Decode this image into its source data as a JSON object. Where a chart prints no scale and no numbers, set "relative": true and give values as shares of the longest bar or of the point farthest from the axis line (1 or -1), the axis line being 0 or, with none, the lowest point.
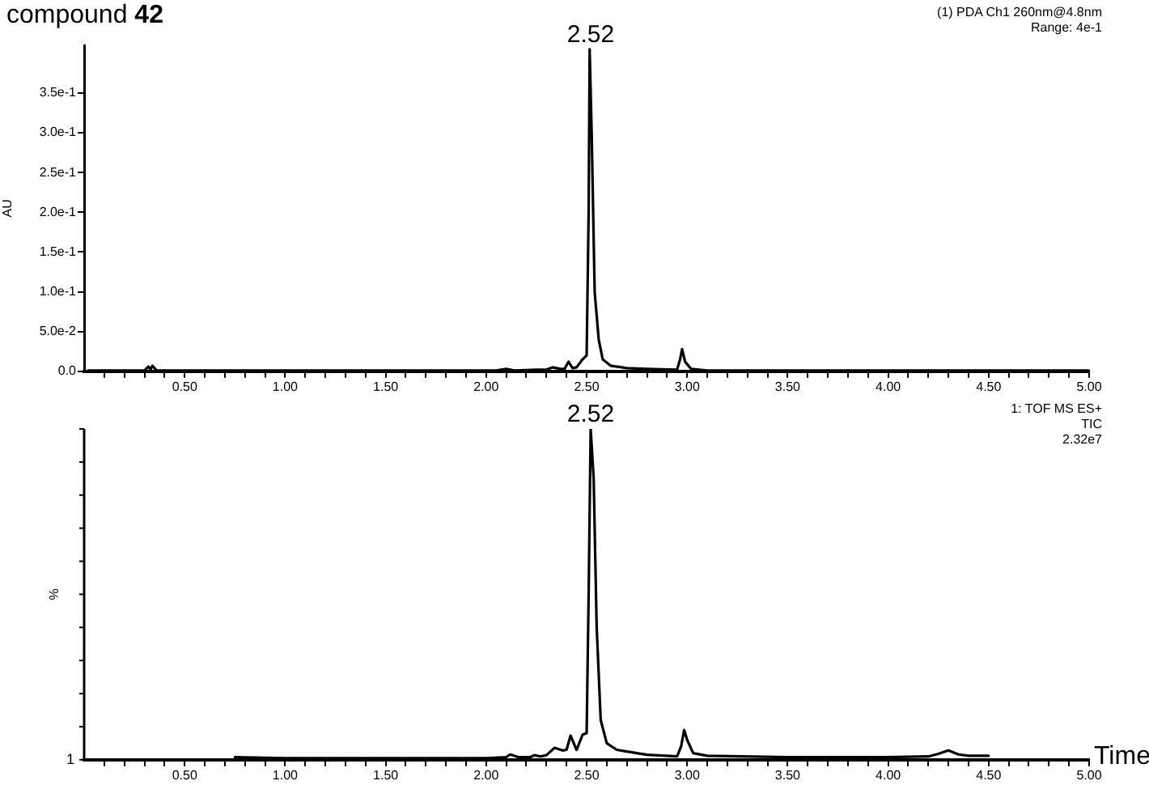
{
  "chart_data": [
    {
      "type": "line",
      "title": "compound 42",
      "ylabel": "AU",
      "xlim": [
        0,
        5
      ],
      "xticks": [
        {
          "value": 0.1,
          "label": null
        },
        {
          "value": 0.2,
          "label": null
        },
        {
          "value": 0.3,
          "label": null
        },
        {
          "value": 0.4,
          "label": null
        },
        {
          "value": 0.5,
          "label": "0.50"
        },
        {
          "value": 0.6,
          "label": null
        },
        {
          "value": 0.7,
          "label": null
        },
        {
          "value": 0.8,
          "label": null
        },
        {
          "value": 0.9,
          "label": null
        },
        {
          "value": 1,
          "label": "1.00"
        },
        {
          "value": 1.1,
          "label": null
        },
        {
          "value": 1.2,
          "label": null
        },
        {
          "value": 1.3,
          "label": null
        },
        {
          "value": 1.4,
          "label": null
        },
        {
          "value": 1.5,
          "label": "1.50"
        },
        {
          "value": 1.6,
          "label": null
        },
        {
          "value": 1.7,
          "label": null
        },
        {
          "value": 1.8,
          "label": null
        },
        {
          "value": 1.9,
          "label": null
        },
        {
          "value": 2,
          "label": "2.00"
        },
        {
          "value": 2.1,
          "label": null
        },
        {
          "value": 2.2,
          "label": null
        },
        {
          "value": 2.3,
          "label": null
        },
        {
          "value": 2.4,
          "label": null
        },
        {
          "value": 2.5,
          "label": "2.50"
        },
        {
          "value": 2.6,
          "label": null
        },
        {
          "value": 2.7,
          "label": null
        },
        {
          "value": 2.8,
          "label": null
        },
        {
          "value": 2.9,
          "label": null
        },
        {
          "value": 3,
          "label": "3.00"
        },
        {
          "value": 3.1,
          "label": null
        },
        {
          "value": 3.2,
          "label": null
        },
        {
          "value": 3.3,
          "label": null
        },
        {
          "value": 3.4,
          "label": null
        },
        {
          "value": 3.5,
          "label": "3.50"
        },
        {
          "value": 3.6,
          "label": null
        },
        {
          "value": 3.7,
          "label": null
        },
        {
          "value": 3.8,
          "label": null
        },
        {
          "value": 3.9,
          "label": null
        },
        {
          "value": 4,
          "label": "4.00"
        },
        {
          "value": 4.1,
          "label": null
        },
        {
          "value": 4.2,
          "label": null
        },
        {
          "value": 4.3,
          "label": null
        },
        {
          "value": 4.4,
          "label": null
        },
        {
          "value": 4.5,
          "label": "4.50"
        },
        {
          "value": 4.6,
          "label": null
        },
        {
          "value": 4.7,
          "label": null
        },
        {
          "value": 4.8,
          "label": null
        },
        {
          "value": 4.9,
          "label": null
        },
        {
          "value": 5,
          "label": "5.00"
        }
      ],
      "ylim": [
        0,
        0.41
      ],
      "yticks": [
        {
          "value": 0,
          "label": "0.0"
        },
        {
          "value": 0.05,
          "label": "5.0e-2"
        },
        {
          "value": 0.1,
          "label": "1.0e-1"
        },
        {
          "value": 0.15,
          "label": "1.5e-1"
        },
        {
          "value": 0.2,
          "label": "2.0e-1"
        },
        {
          "value": 0.25,
          "label": "2.5e-1"
        },
        {
          "value": 0.3,
          "label": "3.0e-1"
        },
        {
          "value": 0.35,
          "label": "3.5e-1"
        }
      ],
      "grid": false,
      "legend": false,
      "marker": "none",
      "line_style": "solid",
      "series": [
        {
          "color": "#000000",
          "x": [
            0.02,
            0.3,
            0.32,
            0.33,
            0.34,
            0.36,
            1.0,
            2.05,
            2.1,
            2.14,
            2.25,
            2.3,
            2.33,
            2.37,
            2.39,
            2.41,
            2.43,
            2.45,
            2.48,
            2.5,
            2.51,
            2.515,
            2.525,
            2.54,
            2.56,
            2.58,
            2.62,
            2.7,
            2.8,
            2.95,
            2.965,
            2.975,
            2.99,
            3.02,
            3.1,
            3.5,
            5.0
          ],
          "values": [
            0.001,
            0.001,
            0.006,
            0.002,
            0.007,
            0.001,
            0.001,
            0.001,
            0.003,
            0.001,
            0.002,
            0.002,
            0.005,
            0.003,
            0.003,
            0.012,
            0.004,
            0.005,
            0.015,
            0.02,
            0.2,
            0.405,
            0.3,
            0.1,
            0.04,
            0.015,
            0.007,
            0.004,
            0.003,
            0.002,
            0.015,
            0.028,
            0.012,
            0.003,
            0.001,
            0.001,
            0.001
          ]
        }
      ],
      "annotations": [
        {
          "text": "2.52",
          "x": 2.52,
          "y": 0.405
        },
        "(1) PDA Ch1 260nm@4.8nm",
        "Range: 4e-1"
      ]
    },
    {
      "type": "line",
      "xlabel": "Time",
      "ylabel": "%",
      "xlim": [
        0,
        5
      ],
      "relative": true,
      "xticks": [
        {
          "value": 0.1,
          "label": null
        },
        {
          "value": 0.2,
          "label": null
        },
        {
          "value": 0.3,
          "label": null
        },
        {
          "value": 0.4,
          "label": null
        },
        {
          "value": 0.5,
          "label": "0.50"
        },
        {
          "value": 0.6,
          "label": null
        },
        {
          "value": 0.7,
          "label": null
        },
        {
          "value": 0.8,
          "label": null
        },
        {
          "value": 0.9,
          "label": null
        },
        {
          "value": 1,
          "label": "1.00"
        },
        {
          "value": 1.1,
          "label": null
        },
        {
          "value": 1.2,
          "label": null
        },
        {
          "value": 1.3,
          "label": null
        },
        {
          "value": 1.4,
          "label": null
        },
        {
          "value": 1.5,
          "label": "1.50"
        },
        {
          "value": 1.6,
          "label": null
        },
        {
          "value": 1.7,
          "label": null
        },
        {
          "value": 1.8,
          "label": null
        },
        {
          "value": 1.9,
          "label": null
        },
        {
          "value": 2,
          "label": "2.00"
        },
        {
          "value": 2.1,
          "label": null
        },
        {
          "value": 2.2,
          "label": null
        },
        {
          "value": 2.3,
          "label": null
        },
        {
          "value": 2.4,
          "label": null
        },
        {
          "value": 2.5,
          "label": "2.50"
        },
        {
          "value": 2.6,
          "label": null
        },
        {
          "value": 2.7,
          "label": null
        },
        {
          "value": 2.8,
          "label": null
        },
        {
          "value": 2.9,
          "label": null
        },
        {
          "value": 3,
          "label": "3.00"
        },
        {
          "value": 3.1,
          "label": null
        },
        {
          "value": 3.2,
          "label": null
        },
        {
          "value": 3.3,
          "label": null
        },
        {
          "value": 3.4,
          "label": null
        },
        {
          "value": 3.5,
          "label": "3.50"
        },
        {
          "value": 3.6,
          "label": null
        },
        {
          "value": 3.7,
          "label": null
        },
        {
          "value": 3.8,
          "label": null
        },
        {
          "value": 3.9,
          "label": null
        },
        {
          "value": 4,
          "label": "4.00"
        },
        {
          "value": 4.1,
          "label": null
        },
        {
          "value": 4.2,
          "label": null
        },
        {
          "value": 4.3,
          "label": null
        },
        {
          "value": 4.4,
          "label": null
        },
        {
          "value": 4.5,
          "label": "4.50"
        },
        {
          "value": 4.6,
          "label": null
        },
        {
          "value": 4.7,
          "label": null
        },
        {
          "value": 4.8,
          "label": null
        },
        {
          "value": 4.9,
          "label": null
        },
        {
          "value": 5,
          "label": "5.00"
        }
      ],
      "grid": false,
      "legend": false,
      "marker": "none",
      "line_style": "solid",
      "series": [
        {
          "color": "#000000",
          "x": [
            0.75,
            1.0,
            1.5,
            2.0,
            2.1,
            2.12,
            2.16,
            2.22,
            2.24,
            2.27,
            2.3,
            2.34,
            2.38,
            2.4,
            2.42,
            2.45,
            2.48,
            2.5,
            2.51,
            2.52,
            2.535,
            2.55,
            2.57,
            2.6,
            2.65,
            2.7,
            2.8,
            2.95,
            2.97,
            2.985,
            3.0,
            3.03,
            3.1,
            3.5,
            4.0,
            4.2,
            4.25,
            4.3,
            4.35,
            4.4,
            4.5
          ],
          "values": [
            0.008,
            0.005,
            0.005,
            0.005,
            0.008,
            0.016,
            0.008,
            0.008,
            0.014,
            0.01,
            0.014,
            0.036,
            0.028,
            0.03,
            0.073,
            0.03,
            0.076,
            0.08,
            0.5,
            1,
            0.85,
            0.4,
            0.12,
            0.05,
            0.03,
            0.025,
            0.015,
            0.01,
            0.04,
            0.09,
            0.06,
            0.02,
            0.012,
            0.008,
            0.008,
            0.01,
            0.018,
            0.028,
            0.016,
            0.012,
            0.012
          ]
        }
      ],
      "annotations": [
        {
          "text": "2.52",
          "x": 2.52,
          "y": 1
        },
        "1: TOF MS ES+",
        "TIC",
        "2.32e7",
        "1"
      ]
    }
  ]
}
